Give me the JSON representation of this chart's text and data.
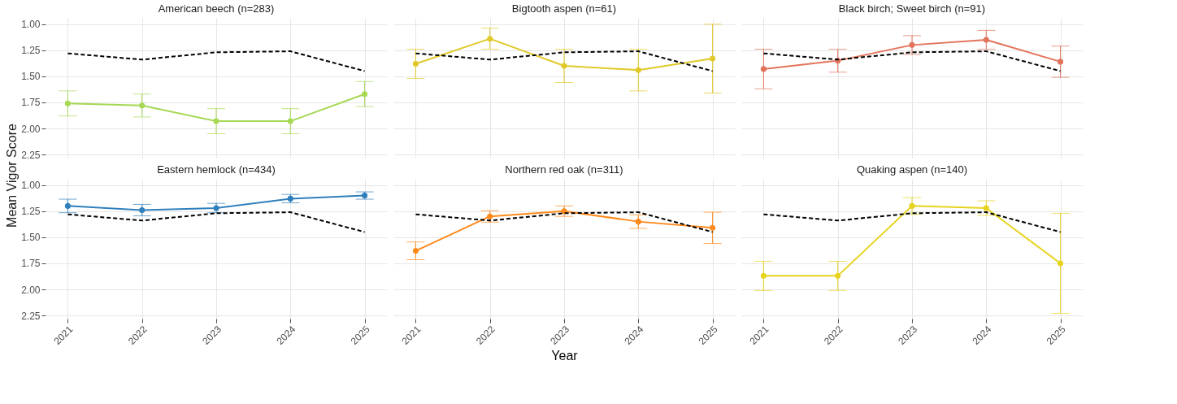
{
  "chart_data": [
    {
      "type": "line",
      "title": "American beech (n=283)",
      "ylabel": "Mean Vigor Score",
      "x": [
        2021,
        2022,
        2023,
        2024,
        2025
      ],
      "xlim": [
        2020.7,
        2025.3
      ],
      "xticks": [
        2021,
        2022,
        2023,
        2024,
        2025
      ],
      "ylim": [
        2.28,
        0.94
      ],
      "yticks": [
        {
          "value": 1,
          "label": "1.00"
        },
        1.25,
        {
          "value": 1.5,
          "label": "1.50"
        },
        1.75,
        {
          "value": 2,
          "label": "2.00"
        },
        2.25
      ],
      "grid": true,
      "tick_labels": "y",
      "series": [
        {
          "color": "#a6d854",
          "marker": "circle",
          "line_style": "solid",
          "values": [
            1.76,
            1.78,
            1.93,
            1.93,
            1.67
          ],
          "errors": [
            0.12,
            0.11,
            0.12,
            0.12,
            0.12
          ]
        },
        {
          "color": "#000000",
          "marker": "none",
          "line_style": "dashed",
          "values": [
            1.28,
            1.34,
            1.27,
            1.26,
            1.45
          ]
        }
      ]
    },
    {
      "type": "line",
      "title": "Bigtooth aspen (n=61)",
      "x": [
        2021,
        2022,
        2023,
        2024,
        2025
      ],
      "xlim": [
        2020.7,
        2025.3
      ],
      "xticks": [
        2021,
        2022,
        2023,
        2024,
        2025
      ],
      "ylim": [
        2.28,
        0.94
      ],
      "yticks": [
        1,
        1.25,
        1.5,
        1.75,
        2,
        2.25
      ],
      "grid": true,
      "tick_labels": false,
      "series": [
        {
          "color": "#e0c92a",
          "marker": "circle",
          "line_style": "solid",
          "values": [
            1.38,
            1.14,
            1.4,
            1.44,
            1.33
          ],
          "errors": [
            0.14,
            0.1,
            0.16,
            0.2,
            0.33
          ]
        },
        {
          "color": "#000000",
          "marker": "none",
          "line_style": "dashed",
          "values": [
            1.28,
            1.34,
            1.27,
            1.26,
            1.45
          ]
        }
      ]
    },
    {
      "type": "line",
      "title": "Black birch; Sweet birch (n=91)",
      "x": [
        2021,
        2022,
        2023,
        2024,
        2025
      ],
      "xlim": [
        2020.7,
        2025.3
      ],
      "xticks": [
        2021,
        2022,
        2023,
        2024,
        2025
      ],
      "ylim": [
        2.28,
        0.94
      ],
      "yticks": [
        1,
        1.25,
        1.5,
        1.75,
        2,
        2.25
      ],
      "grid": true,
      "tick_labels": false,
      "series": [
        {
          "color": "#e3735a",
          "marker": "circle",
          "line_style": "solid",
          "values": [
            1.43,
            1.35,
            1.2,
            1.15,
            1.36
          ],
          "errors": [
            0.19,
            0.11,
            0.09,
            0.09,
            0.15
          ]
        },
        {
          "color": "#000000",
          "marker": "none",
          "line_style": "dashed",
          "values": [
            1.28,
            1.34,
            1.27,
            1.26,
            1.45
          ]
        }
      ]
    },
    {
      "type": "line",
      "title": "Eastern hemlock (n=434)",
      "x": [
        2021,
        2022,
        2023,
        2024,
        2025
      ],
      "xlim": [
        2020.7,
        2025.3
      ],
      "xticks": [
        2021,
        2022,
        2023,
        2024,
        2025
      ],
      "ylim": [
        2.28,
        0.94
      ],
      "yticks": [
        {
          "value": 1,
          "label": "1.00"
        },
        1.25,
        {
          "value": 1.5,
          "label": "1.50"
        },
        1.75,
        {
          "value": 2,
          "label": "2.00"
        },
        2.25
      ],
      "grid": true,
      "series": [
        {
          "color": "#2f7fbc",
          "marker": "circle",
          "line_style": "solid",
          "values": [
            1.2,
            1.24,
            1.22,
            1.13,
            1.1
          ],
          "errors": [
            0.065,
            0.055,
            0.045,
            0.04,
            0.035
          ]
        },
        {
          "color": "#000000",
          "marker": "none",
          "line_style": "dashed",
          "values": [
            1.28,
            1.34,
            1.27,
            1.26,
            1.45
          ]
        }
      ]
    },
    {
      "type": "line",
      "title": "Northern red oak (n=311)",
      "xlabel": "Year",
      "x": [
        2021,
        2022,
        2023,
        2024,
        2025
      ],
      "xlim": [
        2020.7,
        2025.3
      ],
      "xticks": [
        2021,
        2022,
        2023,
        2024,
        2025
      ],
      "ylim": [
        2.28,
        0.94
      ],
      "yticks": [
        1,
        1.25,
        1.5,
        1.75,
        2,
        2.25
      ],
      "grid": true,
      "tick_labels": "x",
      "series": [
        {
          "color": "#ff8a1c",
          "marker": "circle",
          "line_style": "solid",
          "values": [
            1.63,
            1.3,
            1.25,
            1.35,
            1.41
          ],
          "errors": [
            0.085,
            0.055,
            0.05,
            0.065,
            0.15
          ]
        },
        {
          "color": "#000000",
          "marker": "none",
          "line_style": "dashed",
          "values": [
            1.28,
            1.34,
            1.27,
            1.26,
            1.45
          ]
        }
      ]
    },
    {
      "type": "line",
      "title": "Quaking aspen (n=140)",
      "x": [
        2021,
        2022,
        2023,
        2024,
        2025
      ],
      "xlim": [
        2020.7,
        2025.3
      ],
      "xticks": [
        2021,
        2022,
        2023,
        2024,
        2025
      ],
      "ylim": [
        2.28,
        0.94
      ],
      "yticks": [
        1,
        1.25,
        1.5,
        1.75,
        2,
        2.25
      ],
      "grid": true,
      "tick_labels": "x",
      "series": [
        {
          "color": "#e6d31e",
          "marker": "circle",
          "line_style": "solid",
          "values": [
            1.87,
            1.87,
            1.2,
            1.22,
            1.75
          ],
          "errors": [
            0.14,
            0.14,
            0.08,
            0.07,
            0.48
          ]
        },
        {
          "color": "#000000",
          "marker": "none",
          "line_style": "dashed",
          "values": [
            1.28,
            1.34,
            1.27,
            1.26,
            1.45
          ]
        }
      ]
    }
  ]
}
